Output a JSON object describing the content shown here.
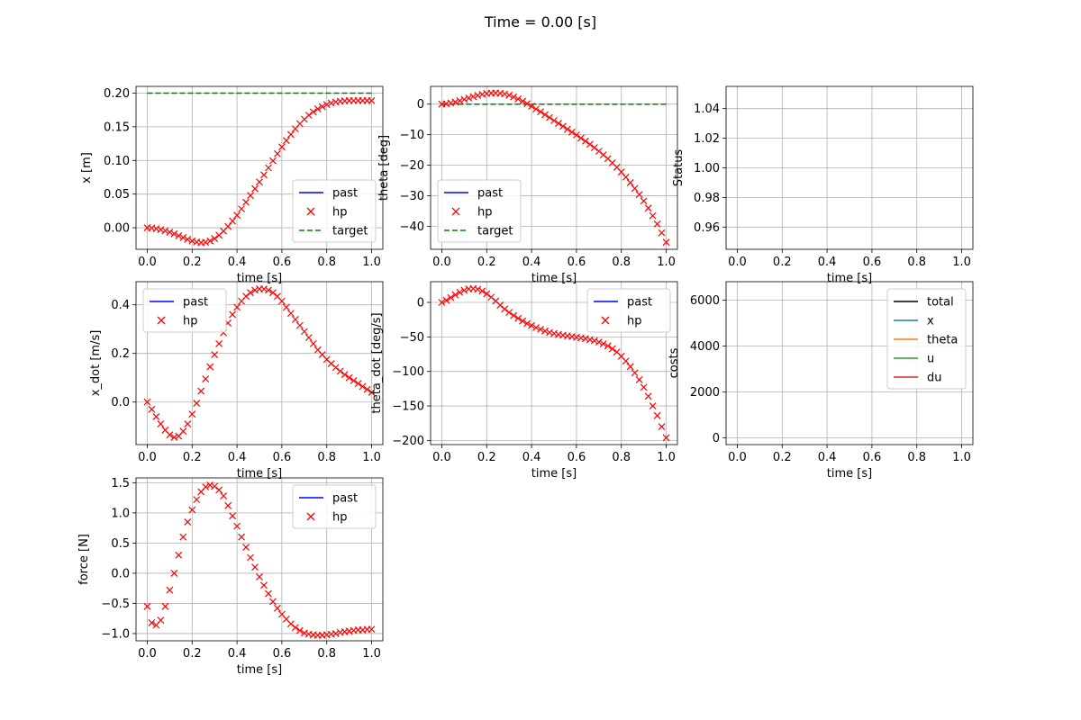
{
  "figure": {
    "title": "Time = 0.00 [s]"
  },
  "colors": {
    "past": "#0000ff",
    "hp": "#ff0000",
    "target": "#008000",
    "x": "#1f77b4",
    "theta": "#ff7f0e",
    "u": "#2ca02c",
    "du": "#d62728"
  },
  "chart_data": [
    {
      "id": "x",
      "type": "line",
      "xlabel": "time [s]",
      "ylabel": "x [m]",
      "xlim": [
        -0.05,
        1.05
      ],
      "ylim": [
        -0.032,
        0.21
      ],
      "xticks": [
        "0.0",
        "0.2",
        "0.4",
        "0.6",
        "0.8",
        "1.0"
      ],
      "yticks": [
        "0.00",
        "0.05",
        "0.10",
        "0.15",
        "0.20"
      ],
      "grid": true,
      "legend": [
        "past",
        "hp",
        "target"
      ],
      "legend_position": "lower-right",
      "target": 0.2,
      "x": [
        0,
        0.02,
        0.04,
        0.06,
        0.08,
        0.1,
        0.12,
        0.14,
        0.16,
        0.18,
        0.2,
        0.22,
        0.24,
        0.26,
        0.28,
        0.3,
        0.32,
        0.34,
        0.36,
        0.38,
        0.4,
        0.42,
        0.44,
        0.46,
        0.48,
        0.5,
        0.52,
        0.54,
        0.56,
        0.58,
        0.6,
        0.62,
        0.64,
        0.66,
        0.68,
        0.7,
        0.72,
        0.74,
        0.76,
        0.78,
        0.8,
        0.82,
        0.84,
        0.86,
        0.88,
        0.9,
        0.92,
        0.94,
        0.96,
        0.98,
        1.0
      ],
      "values": [
        0.0,
        -0.0005,
        -0.0015,
        -0.0028,
        -0.0045,
        -0.0065,
        -0.009,
        -0.0118,
        -0.0145,
        -0.0172,
        -0.0195,
        -0.0212,
        -0.022,
        -0.0215,
        -0.0195,
        -0.016,
        -0.011,
        -0.005,
        0.002,
        0.01,
        0.0185,
        0.028,
        0.038,
        0.048,
        0.058,
        0.068,
        0.0785,
        0.089,
        0.0995,
        0.11,
        0.12,
        0.1295,
        0.1385,
        0.147,
        0.1545,
        0.1612,
        0.1672,
        0.1722,
        0.1765,
        0.18,
        0.183,
        0.1852,
        0.1868,
        0.1878,
        0.1885,
        0.1888,
        0.1889,
        0.1889,
        0.1889,
        0.1889,
        0.1889
      ]
    },
    {
      "id": "theta",
      "type": "line",
      "xlabel": "time [s]",
      "ylabel": "theta [deg]",
      "xlim": [
        -0.05,
        1.05
      ],
      "ylim": [
        -47.5,
        5.8
      ],
      "xticks": [
        "0.0",
        "0.2",
        "0.4",
        "0.6",
        "0.8",
        "1.0"
      ],
      "yticks": [
        "0",
        "−10",
        "−20",
        "−30",
        "−40"
      ],
      "grid": true,
      "legend": [
        "past",
        "hp",
        "target"
      ],
      "legend_position": "lower-left",
      "target": 0,
      "x": [
        0,
        0.02,
        0.04,
        0.06,
        0.08,
        0.1,
        0.12,
        0.14,
        0.16,
        0.18,
        0.2,
        0.22,
        0.24,
        0.26,
        0.28,
        0.3,
        0.32,
        0.34,
        0.36,
        0.38,
        0.4,
        0.42,
        0.44,
        0.46,
        0.48,
        0.5,
        0.52,
        0.54,
        0.56,
        0.58,
        0.6,
        0.62,
        0.64,
        0.66,
        0.68,
        0.7,
        0.72,
        0.74,
        0.76,
        0.78,
        0.8,
        0.82,
        0.84,
        0.86,
        0.88,
        0.9,
        0.92,
        0.94,
        0.96,
        0.98,
        1.0
      ],
      "values": [
        0.0,
        0.1,
        0.35,
        0.7,
        1.1,
        1.55,
        2.0,
        2.45,
        2.85,
        3.2,
        3.45,
        3.6,
        3.65,
        3.55,
        3.3,
        2.9,
        2.35,
        1.7,
        0.95,
        0.15,
        -0.7,
        -1.6,
        -2.5,
        -3.45,
        -4.4,
        -5.35,
        -6.3,
        -7.25,
        -8.2,
        -9.15,
        -10.1,
        -11.1,
        -12.1,
        -13.15,
        -14.25,
        -15.4,
        -16.6,
        -17.85,
        -19.2,
        -20.65,
        -22.2,
        -23.9,
        -25.7,
        -27.6,
        -29.6,
        -31.7,
        -34.0,
        -36.5,
        -39.2,
        -42.1,
        -45.2
      ]
    },
    {
      "id": "status",
      "type": "line",
      "xlabel": "time [s]",
      "ylabel": "Status",
      "xlim": [
        -0.05,
        1.05
      ],
      "ylim": [
        0.945,
        1.055
      ],
      "xticks": [
        "0.0",
        "0.2",
        "0.4",
        "0.6",
        "0.8",
        "1.0"
      ],
      "yticks": [
        "0.96",
        "0.98",
        "1.00",
        "1.02",
        "1.04"
      ],
      "grid": true,
      "x": [],
      "values": []
    },
    {
      "id": "x_dot",
      "type": "line",
      "xlabel": "time [s]",
      "ylabel": "x_dot [m/s]",
      "xlim": [
        -0.05,
        1.05
      ],
      "ylim": [
        -0.175,
        0.495
      ],
      "xticks": [
        "0.0",
        "0.2",
        "0.4",
        "0.6",
        "0.8",
        "1.0"
      ],
      "yticks": [
        "0.0",
        "0.2",
        "0.4"
      ],
      "grid": true,
      "legend": [
        "past",
        "hp"
      ],
      "legend_position": "upper-left",
      "x": [
        0,
        0.02,
        0.04,
        0.06,
        0.08,
        0.1,
        0.12,
        0.14,
        0.16,
        0.18,
        0.2,
        0.22,
        0.24,
        0.26,
        0.28,
        0.3,
        0.32,
        0.34,
        0.36,
        0.38,
        0.4,
        0.42,
        0.44,
        0.46,
        0.48,
        0.5,
        0.52,
        0.54,
        0.56,
        0.58,
        0.6,
        0.62,
        0.64,
        0.66,
        0.68,
        0.7,
        0.72,
        0.74,
        0.76,
        0.78,
        0.8,
        0.82,
        0.84,
        0.86,
        0.88,
        0.9,
        0.92,
        0.94,
        0.96,
        0.98,
        1.0
      ],
      "values": [
        0.0,
        -0.03,
        -0.06,
        -0.09,
        -0.115,
        -0.135,
        -0.145,
        -0.14,
        -0.12,
        -0.09,
        -0.05,
        -0.005,
        0.045,
        0.095,
        0.145,
        0.195,
        0.24,
        0.285,
        0.325,
        0.36,
        0.39,
        0.415,
        0.435,
        0.45,
        0.46,
        0.465,
        0.465,
        0.46,
        0.45,
        0.435,
        0.415,
        0.39,
        0.365,
        0.34,
        0.315,
        0.29,
        0.265,
        0.24,
        0.215,
        0.195,
        0.175,
        0.158,
        0.142,
        0.127,
        0.113,
        0.1,
        0.088,
        0.076,
        0.064,
        0.052,
        0.04
      ]
    },
    {
      "id": "theta_dot",
      "type": "line",
      "xlabel": "time [s]",
      "ylabel": "theta_dot [deg/s]",
      "xlim": [
        -0.05,
        1.05
      ],
      "ylim": [
        -206,
        30
      ],
      "xticks": [
        "0.0",
        "0.2",
        "0.4",
        "0.6",
        "0.8",
        "1.0"
      ],
      "yticks": [
        "0",
        "−50",
        "−100",
        "−150",
        "−200"
      ],
      "grid": true,
      "legend": [
        "past",
        "hp"
      ],
      "legend_position": "upper-right",
      "x": [
        0,
        0.02,
        0.04,
        0.06,
        0.08,
        0.1,
        0.12,
        0.14,
        0.16,
        0.18,
        0.2,
        0.22,
        0.24,
        0.26,
        0.28,
        0.3,
        0.32,
        0.34,
        0.36,
        0.38,
        0.4,
        0.42,
        0.44,
        0.46,
        0.48,
        0.5,
        0.52,
        0.54,
        0.56,
        0.58,
        0.6,
        0.62,
        0.64,
        0.66,
        0.68,
        0.7,
        0.72,
        0.74,
        0.76,
        0.78,
        0.8,
        0.82,
        0.84,
        0.86,
        0.88,
        0.9,
        0.92,
        0.94,
        0.96,
        0.98,
        1.0
      ],
      "values": [
        0,
        3,
        7,
        11,
        14.5,
        17.5,
        19.5,
        20,
        19,
        16.5,
        12.5,
        7.5,
        2,
        -4,
        -9.5,
        -14.5,
        -19,
        -23,
        -27,
        -30.5,
        -33.5,
        -36.5,
        -39,
        -41.5,
        -43.5,
        -45,
        -46.5,
        -47.5,
        -48.5,
        -49.5,
        -50.5,
        -51.5,
        -52.5,
        -54,
        -55.5,
        -57.5,
        -60,
        -63,
        -67,
        -72,
        -78,
        -85,
        -93,
        -102,
        -112,
        -123,
        -136,
        -150,
        -164,
        -180,
        -196
      ]
    },
    {
      "id": "costs",
      "type": "line",
      "xlabel": "time [s]",
      "ylabel": "costs",
      "xlim": [
        -0.05,
        1.05
      ],
      "ylim": [
        -300,
        6800
      ],
      "xticks": [
        "0.0",
        "0.2",
        "0.4",
        "0.6",
        "0.8",
        "1.0"
      ],
      "yticks": [
        "0",
        "2000",
        "4000",
        "6000"
      ],
      "grid": true,
      "legend": [
        "total",
        "x",
        "theta",
        "u",
        "du"
      ],
      "legend_position": "upper-right",
      "x": [],
      "values": []
    },
    {
      "id": "force",
      "type": "line",
      "xlabel": "time [s]",
      "ylabel": "force [N]",
      "xlim": [
        -0.05,
        1.05
      ],
      "ylim": [
        -1.12,
        1.58
      ],
      "xticks": [
        "0.0",
        "0.2",
        "0.4",
        "0.6",
        "0.8",
        "1.0"
      ],
      "yticks": [
        "−1.0",
        "−0.5",
        "0.0",
        "0.5",
        "1.0",
        "1.5"
      ],
      "grid": true,
      "legend": [
        "past",
        "hp"
      ],
      "legend_position": "upper-right",
      "x": [
        0,
        0.02,
        0.04,
        0.06,
        0.08,
        0.1,
        0.12,
        0.14,
        0.16,
        0.18,
        0.2,
        0.22,
        0.24,
        0.26,
        0.28,
        0.3,
        0.32,
        0.34,
        0.36,
        0.38,
        0.4,
        0.42,
        0.44,
        0.46,
        0.48,
        0.5,
        0.52,
        0.54,
        0.56,
        0.58,
        0.6,
        0.62,
        0.64,
        0.66,
        0.68,
        0.7,
        0.72,
        0.74,
        0.76,
        0.78,
        0.8,
        0.82,
        0.84,
        0.86,
        0.88,
        0.9,
        0.92,
        0.94,
        0.96,
        0.98,
        1.0
      ],
      "values": [
        -0.55,
        -0.82,
        -0.86,
        -0.78,
        -0.55,
        -0.28,
        0.0,
        0.3,
        0.6,
        0.85,
        1.05,
        1.22,
        1.35,
        1.43,
        1.46,
        1.44,
        1.38,
        1.28,
        1.12,
        0.95,
        0.78,
        0.6,
        0.43,
        0.26,
        0.1,
        -0.06,
        -0.2,
        -0.34,
        -0.47,
        -0.58,
        -0.68,
        -0.76,
        -0.84,
        -0.9,
        -0.95,
        -0.99,
        -1.01,
        -1.02,
        -1.03,
        -1.03,
        -1.02,
        -1.01,
        -1.0,
        -0.98,
        -0.97,
        -0.96,
        -0.95,
        -0.94,
        -0.94,
        -0.93,
        -0.93
      ]
    }
  ]
}
